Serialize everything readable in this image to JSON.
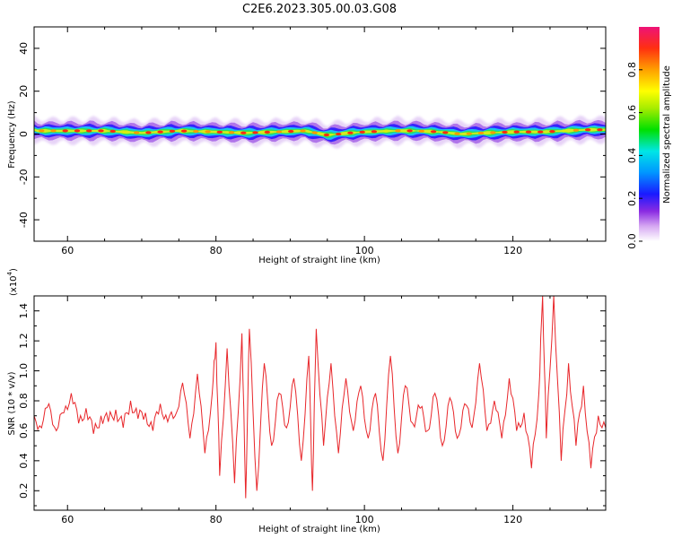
{
  "figure": {
    "title": "C2E6.2023.305.00.03.G08"
  },
  "chart_data": [
    {
      "type": "heatmap",
      "title": "C2E6.2023.305.00.03.G08",
      "xlabel": "Height of straight line (km)",
      "ylabel": "Frequency (Hz)",
      "xlim": [
        55.5,
        132.5
      ],
      "ylim": [
        -50,
        50
      ],
      "xticks": [
        60,
        80,
        100,
        120
      ],
      "yticks": [
        40,
        20,
        0,
        -20,
        -40
      ],
      "ytick_labels": [
        "40",
        "20",
        "0",
        "-20",
        "-40"
      ],
      "band": {
        "center_frequency_hz": [
          1.5,
          1.5,
          1.5,
          0.5,
          1.5,
          1.0,
          0.5,
          1.0,
          1.5,
          -0.5,
          0.5,
          1.0,
          1.5,
          1.5,
          1.0,
          0.0,
          0.5,
          1.0,
          1.0,
          1.5,
          2.0,
          2.0
        ],
        "x_km": [
          56,
          60,
          65,
          70,
          75,
          80,
          84,
          88,
          92,
          95,
          98,
          100,
          104,
          107,
          110,
          113,
          116,
          120,
          124,
          127,
          130,
          132
        ]
      },
      "colorbar": {
        "label": "Normalized spectral amplitude",
        "range": [
          0.0,
          1.0
        ],
        "ticks": [
          0.0,
          0.2,
          0.4,
          0.6,
          0.8
        ],
        "tick_labels": [
          "0.0",
          "0.2",
          "0.4",
          "0.6",
          "0.8"
        ]
      },
      "grid": false
    },
    {
      "type": "line",
      "xlabel": "Height of straight line (km)",
      "ylabel": "SNR (10 * v/v)",
      "y_multiplier": "(x10",
      "y_multiplier_exponent": "4",
      "y_multiplier_close": ")",
      "xlim": [
        55.5,
        132.5
      ],
      "ylim": [
        0.07,
        1.5
      ],
      "xticks": [
        60,
        80,
        100,
        120
      ],
      "yticks": [
        0.2,
        0.4,
        0.6,
        0.8,
        1.0,
        1.2,
        1.4
      ],
      "ytick_labels": [
        "0.2",
        "0.4",
        "0.6",
        "0.8",
        "1.0",
        "1.2",
        "1.4"
      ],
      "color": "#e8262a",
      "series": [
        {
          "x": [
            55.5,
            56.5,
            57.5,
            58.5,
            59.5,
            60.5,
            61.5,
            62.5,
            63.5,
            64.5,
            65.5,
            66.5,
            67.5,
            68.5,
            69.5,
            70.5,
            71.5,
            72.5,
            73.5,
            74.5,
            75.5,
            76.5,
            77.5,
            78.5,
            79.5,
            80.0,
            80.5,
            81.5,
            82.5,
            83.5,
            84.0,
            84.5,
            85.5,
            86.5,
            87.5,
            88.5,
            89.5,
            90.5,
            91.5,
            92.5,
            93.0,
            93.5,
            94.5,
            95.5,
            96.5,
            97.5,
            98.5,
            99.5,
            100.5,
            101.5,
            102.5,
            103.5,
            104.5,
            105.5,
            106.5,
            107.5,
            108.5,
            109.5,
            110.5,
            111.5,
            112.5,
            113.5,
            114.5,
            115.5,
            116.5,
            117.5,
            118.5,
            119.5,
            120.5,
            121.5,
            122.5,
            123.5,
            124.0,
            124.5,
            125.5,
            126.5,
            127.5,
            128.5,
            129.5,
            130.5,
            131.5,
            132.5
          ],
          "values": [
            0.7,
            0.62,
            0.78,
            0.6,
            0.72,
            0.85,
            0.65,
            0.75,
            0.58,
            0.7,
            0.66,
            0.74,
            0.62,
            0.8,
            0.68,
            0.72,
            0.6,
            0.78,
            0.66,
            0.7,
            0.92,
            0.55,
            0.98,
            0.45,
            0.85,
            1.19,
            0.3,
            1.15,
            0.25,
            1.25,
            0.15,
            1.28,
            0.2,
            1.05,
            0.5,
            0.85,
            0.62,
            0.95,
            0.4,
            1.1,
            0.2,
            1.28,
            0.5,
            1.05,
            0.45,
            0.95,
            0.6,
            0.9,
            0.55,
            0.85,
            0.4,
            1.1,
            0.45,
            0.9,
            0.65,
            0.75,
            0.6,
            0.85,
            0.5,
            0.82,
            0.55,
            0.78,
            0.62,
            1.05,
            0.6,
            0.8,
            0.55,
            0.95,
            0.6,
            0.72,
            0.35,
            0.85,
            1.5,
            0.55,
            1.5,
            0.4,
            1.05,
            0.5,
            0.9,
            0.35,
            0.7,
            0.62
          ]
        }
      ],
      "grid": false
    }
  ]
}
